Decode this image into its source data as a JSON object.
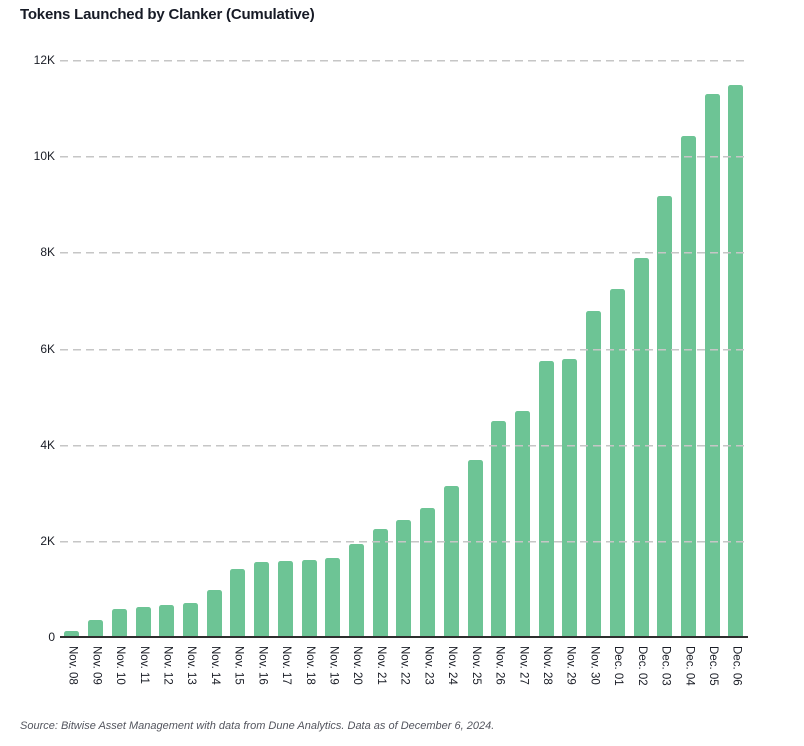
{
  "page": {
    "title": "Tokens Launched by Clanker (Cumulative)",
    "source": "Source: Bitwise Asset Management with data from Dune Analytics. Data as of December 6, 2024."
  },
  "chart_data": {
    "type": "bar",
    "title": "Tokens Launched by Clanker (Cumulative)",
    "categories": [
      "Nov. 08",
      "Nov. 09",
      "Nov. 10",
      "Nov. 11",
      "Nov. 12",
      "Nov. 13",
      "Nov. 14",
      "Nov. 15",
      "Nov. 16",
      "Nov. 17",
      "Nov. 18",
      "Nov. 19",
      "Nov. 20",
      "Nov. 21",
      "Nov. 22",
      "Nov. 23",
      "Nov. 24",
      "Nov. 25",
      "Nov. 26",
      "Nov. 27",
      "Nov. 28",
      "Nov. 29",
      "Nov. 30",
      "Dec. 01",
      "Dec. 02",
      "Dec. 03",
      "Dec. 04",
      "Dec. 05",
      "Dec. 06"
    ],
    "values": [
      130,
      350,
      590,
      630,
      660,
      700,
      980,
      1410,
      1560,
      1590,
      1610,
      1640,
      1930,
      2250,
      2430,
      2680,
      3150,
      3690,
      4500,
      4700,
      5740,
      5780,
      6780,
      7230,
      7890,
      9170,
      10420,
      11300,
      11470
    ],
    "xlabel": "",
    "ylabel": "",
    "ylim": [
      0,
      12000
    ],
    "yticks": [
      {
        "label": "12K",
        "value": 12000
      },
      {
        "label": "10K",
        "value": 10000
      },
      {
        "label": "8K",
        "value": 8000
      },
      {
        "label": "6K",
        "value": 6000
      },
      {
        "label": "4K",
        "value": 4000
      },
      {
        "label": "2K",
        "value": 2000
      },
      {
        "label": "0",
        "value": 0
      }
    ],
    "grid": "horizontal-dashed",
    "legend": "none",
    "bar_color": "#6dc495",
    "axis_color": "#2e2e2e",
    "grid_color": "#c6c6c6",
    "text_color": "#1a1d26"
  }
}
